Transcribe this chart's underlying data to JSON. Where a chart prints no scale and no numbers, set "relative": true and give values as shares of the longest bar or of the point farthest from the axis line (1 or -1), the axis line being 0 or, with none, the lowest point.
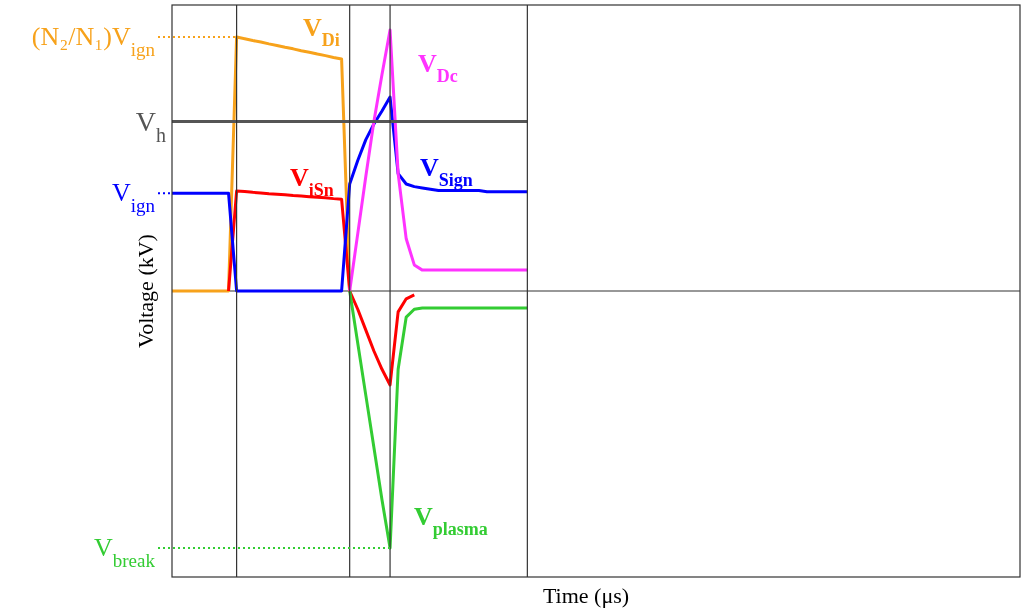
{
  "chart_data": {
    "type": "line",
    "relative": true,
    "xlabel": "Time (μs)",
    "ylabel": "Voltage (kV)",
    "legend": false,
    "grid": "x",
    "marker": "none",
    "line_style": "solid",
    "categories": [
      null,
      null,
      null,
      null,
      null,
      null,
      null,
      null,
      null,
      null,
      null,
      null,
      null,
      null,
      null,
      null,
      null,
      null,
      null,
      null,
      null,
      null,
      null,
      null,
      null,
      null,
      null,
      null,
      null,
      null,
      null,
      null,
      null,
      null,
      null,
      null,
      null,
      null,
      null,
      null,
      null,
      null,
      null,
      null,
      null,
      null,
      null,
      null,
      null,
      null,
      null,
      null,
      null,
      null,
      null,
      null,
      null,
      null,
      null,
      null,
      null,
      null,
      null,
      null,
      null,
      null,
      null,
      null,
      null,
      null,
      null,
      null,
      null,
      null,
      null,
      null,
      null,
      null,
      null,
      null,
      null,
      null,
      null,
      null,
      null,
      null,
      null,
      null,
      null,
      null,
      null,
      null,
      null,
      null,
      null,
      null,
      null,
      null,
      null,
      null,
      null,
      null,
      null,
      null,
      null,
      null
    ],
    "series": [
      {
        "name": "V$_{Di}$",
        "color": "#f7a21b",
        "values": [
          0,
          0,
          0,
          0,
          0,
          0,
          0,
          0,
          0.973,
          0.967,
          0.96,
          0.954,
          0.947,
          0.941,
          0.934,
          0.928,
          0.921,
          0.915,
          0.908,
          0.902,
          0.895,
          0.889,
          0,
          null,
          null,
          null,
          null,
          null,
          null,
          null,
          null,
          null,
          null,
          null,
          null,
          null,
          null,
          null,
          null,
          null,
          null,
          null,
          null,
          null,
          null,
          null,
          null,
          null,
          null,
          null,
          null,
          null,
          null,
          null,
          null,
          null,
          null,
          null,
          null,
          null,
          null,
          null,
          null,
          null,
          null,
          null,
          null,
          null,
          null,
          null,
          null,
          null,
          null,
          null,
          null,
          null,
          null,
          null,
          null,
          null,
          null,
          null,
          null,
          null,
          null,
          null,
          null,
          null,
          null,
          null,
          null,
          null,
          null,
          null,
          null,
          null,
          null,
          null,
          null,
          null,
          null,
          null,
          null,
          null,
          null,
          null
        ]
      },
      {
        "name": "V$_{iSn}$",
        "color": "#ff0000",
        "values": [
          null,
          null,
          null,
          null,
          null,
          null,
          null,
          0,
          0.383,
          0.381,
          0.378,
          0.376,
          0.373,
          0.371,
          0.369,
          0.366,
          0.364,
          0.361,
          0.359,
          0.357,
          0.354,
          0.352,
          0,
          -0.07,
          -0.15,
          -0.23,
          -0.3,
          -0.36,
          -0.08,
          -0.03,
          -0.015,
          null,
          null,
          null,
          null,
          null,
          null,
          null,
          null,
          null,
          null,
          null,
          null,
          null,
          null,
          null,
          null,
          null,
          null,
          null,
          null,
          null,
          null,
          null,
          null,
          null,
          null,
          null,
          null,
          null,
          null,
          null,
          null,
          null,
          null,
          null,
          null,
          null,
          null,
          null,
          null,
          null,
          null,
          null,
          null,
          null,
          null,
          null,
          null,
          null,
          null,
          null,
          null,
          null,
          null,
          null,
          null,
          null,
          null,
          null,
          null,
          null,
          null,
          null,
          null,
          null,
          null,
          null,
          null,
          null,
          null,
          null,
          null,
          null,
          null,
          null
        ]
      },
      {
        "name": "V$_{Sign}$",
        "color": "#0000ff",
        "values": [
          0.375,
          0.375,
          0.375,
          0.375,
          0.375,
          0.375,
          0.375,
          0.375,
          0,
          0,
          0,
          0,
          0,
          0,
          0,
          0,
          0,
          0,
          0,
          0,
          0,
          0,
          0.41,
          0.5,
          0.58,
          0.64,
          0.69,
          0.743,
          0.45,
          0.41,
          0.4,
          0.395,
          0.39,
          0.385,
          0.385,
          0.385,
          0.385,
          0.385,
          0.385,
          0.38,
          0.38,
          0.38,
          0.38,
          0.38,
          0.38,
          null,
          null,
          null,
          null,
          null,
          null,
          null,
          null,
          null,
          null,
          null,
          null,
          null,
          null,
          null,
          null,
          null,
          null,
          null,
          null,
          null,
          null,
          null,
          null,
          null,
          null,
          null,
          null,
          null,
          null,
          null,
          null,
          null,
          null,
          null,
          null,
          null,
          null,
          null,
          null,
          null,
          null,
          null,
          null,
          null,
          null,
          null,
          null,
          null,
          null,
          null,
          null,
          null,
          null,
          null,
          null,
          null,
          null,
          null,
          null,
          null
        ]
      },
      {
        "name": "V$_{Dc}$",
        "color": "#ff33ff",
        "values": [
          null,
          null,
          null,
          null,
          null,
          null,
          null,
          null,
          null,
          null,
          null,
          null,
          null,
          null,
          null,
          null,
          null,
          null,
          null,
          null,
          null,
          null,
          0,
          0.22,
          0.44,
          0.65,
          0.83,
          1,
          0.45,
          0.2,
          0.1,
          0.08,
          0.08,
          0.08,
          0.08,
          0.08,
          0.08,
          0.08,
          0.08,
          0.08,
          0.08,
          0.08,
          0.08,
          0.08,
          0.08,
          null,
          null,
          null,
          null,
          null,
          null,
          null,
          null,
          null,
          null,
          null,
          null,
          null,
          null,
          null,
          null,
          null,
          null,
          null,
          null,
          null,
          null,
          null,
          null,
          null,
          null,
          null,
          null,
          null,
          null,
          null,
          null,
          null,
          null,
          null,
          null,
          null,
          null,
          null,
          null,
          null,
          null,
          null,
          null,
          null,
          null,
          null,
          null,
          null,
          null,
          null,
          null,
          null,
          null,
          null,
          null,
          null,
          null,
          null,
          null,
          null
        ]
      },
      {
        "name": "V$_{plasma}$",
        "color": "#33cc33",
        "values": [
          null,
          null,
          null,
          null,
          null,
          null,
          null,
          null,
          null,
          null,
          null,
          null,
          null,
          null,
          null,
          null,
          null,
          null,
          null,
          null,
          null,
          null,
          0,
          -0.2,
          -0.4,
          -0.6,
          -0.8,
          -0.985,
          -0.3,
          -0.1,
          -0.07,
          -0.065,
          -0.065,
          -0.065,
          -0.065,
          -0.065,
          -0.065,
          -0.065,
          -0.065,
          -0.065,
          -0.065,
          -0.065,
          -0.065,
          -0.065,
          -0.065,
          null,
          null,
          null,
          null,
          null,
          null,
          null,
          null,
          null,
          null,
          null,
          null,
          null,
          null,
          null,
          null,
          null,
          null,
          null,
          null,
          null,
          null,
          null,
          null,
          null,
          null,
          null,
          null,
          null,
          null,
          null,
          null,
          null,
          null,
          null,
          null,
          null,
          null,
          null,
          null,
          null,
          null,
          null,
          null,
          null,
          null,
          null,
          null,
          null,
          null,
          null,
          null,
          null,
          null,
          null,
          null,
          null,
          null,
          null,
          null,
          null
        ]
      },
      {
        "name": "V$_{h}$",
        "color": "#555555",
        "values": [
          0.65,
          0.65,
          0.65,
          0.65,
          0.65,
          0.65,
          0.65,
          0.65,
          0.65,
          0.65,
          0.65,
          0.65,
          0.65,
          0.65,
          0.65,
          0.65,
          0.65,
          0.65,
          0.65,
          0.65,
          0.65,
          0.65,
          0.65,
          0.65,
          0.65,
          0.65,
          0.65,
          0.65,
          0.65,
          0.65,
          0.65,
          0.65,
          0.65,
          0.65,
          0.65,
          0.65,
          0.65,
          0.65,
          0.65,
          0.65,
          0.65,
          0.65,
          0.65,
          0.65,
          0.65,
          null,
          null,
          null,
          null,
          null,
          null,
          null,
          null,
          null,
          null,
          null,
          null,
          null,
          null,
          null,
          null,
          null,
          null,
          null,
          null,
          null,
          null,
          null,
          null,
          null,
          null,
          null,
          null,
          null,
          null,
          null,
          null,
          null,
          null,
          null,
          null,
          null,
          null,
          null,
          null,
          null,
          null,
          null,
          null,
          null,
          null,
          null,
          null,
          null,
          null,
          null,
          null,
          null,
          null,
          null,
          null,
          null,
          null,
          null,
          null,
          null
        ]
      }
    ],
    "ref_lines": [
      {
        "axis": "y",
        "value": 0.973,
        "label": "(N₂/N₁)V$_{ign}$",
        "color": "#f7a21b",
        "line_style": "dotted"
      },
      {
        "axis": "y",
        "value": 0.375,
        "label": "V$_{ign}$",
        "color": "#0000ff",
        "line_style": "dotted"
      },
      {
        "axis": "y",
        "value": -0.985,
        "label": "V$_{break}$",
        "color": "#33cc33",
        "line_style": "dotted"
      }
    ]
  }
}
